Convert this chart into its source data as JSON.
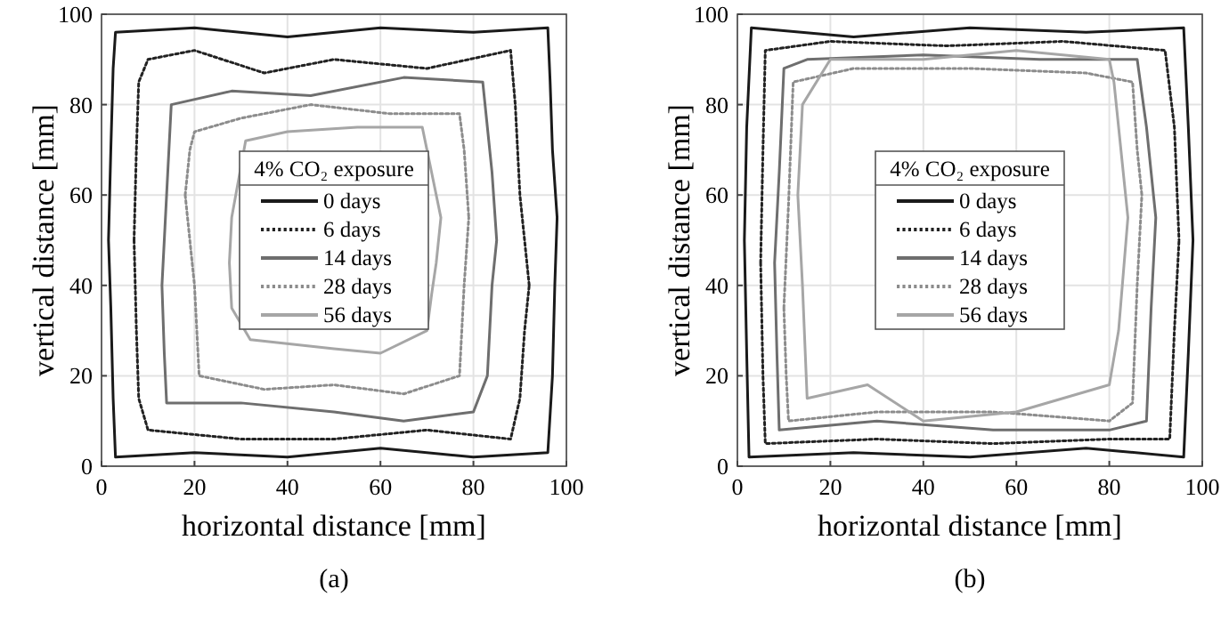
{
  "chart_data": [
    {
      "type": "line",
      "xlabel": "horizontal distance [mm]",
      "ylabel": "vertical distance [mm]",
      "legend_title": "4% CO₂ exposure",
      "legend": "center",
      "grid": true,
      "xlim": [
        0,
        100
      ],
      "ylim": [
        0,
        100
      ],
      "xticks": [
        0,
        20,
        40,
        60,
        80,
        100
      ],
      "yticks": [
        0,
        20,
        40,
        60,
        80,
        100
      ],
      "annotations": [
        "(a)"
      ],
      "series": [
        {
          "name": "0 days",
          "color": "#1a1a1a",
          "line_style": "solid",
          "x": [
            1.5,
            2,
            2.5,
            3,
            20,
            40,
            60,
            80,
            96,
            97,
            97.5,
            98,
            null,
            1.5,
            2,
            2.5,
            3,
            20,
            40,
            60,
            80,
            96,
            96.5,
            97,
            98
          ],
          "values": [
            50,
            35,
            15,
            2,
            3,
            2,
            4,
            2,
            3,
            20,
            40,
            55,
            null,
            50,
            70,
            88,
            96,
            97,
            95,
            97,
            96,
            97,
            85,
            70,
            55
          ]
        },
        {
          "name": "6 days",
          "color": "#222222",
          "line_style": "dotted",
          "x": [
            7,
            7.5,
            8,
            10,
            30,
            50,
            70,
            88,
            90,
            91,
            92,
            null,
            7,
            7.5,
            8,
            10,
            20,
            35,
            50,
            70,
            88,
            89,
            90,
            92
          ],
          "values": [
            50,
            30,
            15,
            8,
            6,
            6,
            8,
            6,
            15,
            30,
            40,
            null,
            50,
            70,
            85,
            90,
            92,
            87,
            90,
            88,
            92,
            80,
            60,
            40
          ]
        },
        {
          "name": "14 days",
          "color": "#6e6e6e",
          "line_style": "solid",
          "x": [
            13,
            13.5,
            14,
            30,
            50,
            65,
            80,
            83,
            84,
            85,
            null,
            13,
            14,
            15,
            28,
            45,
            65,
            82,
            83,
            84,
            85
          ],
          "values": [
            40,
            25,
            14,
            14,
            12,
            10,
            12,
            20,
            40,
            50,
            null,
            40,
            60,
            80,
            83,
            82,
            86,
            85,
            75,
            65,
            50
          ]
        },
        {
          "name": "28 days",
          "color": "#8c8c8c",
          "line_style": "dotted",
          "x": [
            18,
            20,
            21,
            35,
            50,
            65,
            77,
            78,
            79,
            null,
            18,
            19,
            20,
            30,
            45,
            62,
            77,
            78,
            79
          ],
          "values": [
            60,
            40,
            20,
            17,
            18,
            16,
            20,
            40,
            55,
            null,
            60,
            70,
            74,
            77,
            80,
            78,
            78,
            70,
            55
          ]
        },
        {
          "name": "56 days",
          "color": "#a6a6a6",
          "line_style": "solid",
          "x": [
            27.5,
            28,
            32,
            50,
            60,
            70,
            71,
            72,
            73,
            null,
            27.5,
            28,
            31,
            40,
            55,
            69,
            70,
            71,
            73
          ],
          "values": [
            45,
            35,
            28,
            26,
            25,
            30,
            38,
            45,
            55,
            null,
            45,
            55,
            72,
            74,
            75,
            75,
            70,
            65,
            55
          ]
        }
      ]
    },
    {
      "type": "line",
      "xlabel": "horizontal distance [mm]",
      "ylabel": "vertical distance [mm]",
      "legend_title": "4% CO₂ exposure",
      "legend": "center",
      "grid": true,
      "xlim": [
        0,
        100
      ],
      "ylim": [
        0,
        100
      ],
      "xticks": [
        0,
        20,
        40,
        60,
        80,
        100
      ],
      "yticks": [
        0,
        20,
        40,
        60,
        80,
        100
      ],
      "annotations": [
        "(b)"
      ],
      "series": [
        {
          "name": "0 days",
          "color": "#1a1a1a",
          "line_style": "solid",
          "x": [
            1.5,
            2,
            2.5,
            25,
            50,
            75,
            96,
            97,
            98,
            null,
            1.5,
            2,
            3,
            25,
            50,
            75,
            96,
            97,
            98
          ],
          "values": [
            50,
            25,
            2,
            3,
            2,
            4,
            2,
            25,
            50,
            null,
            50,
            75,
            97,
            95,
            97,
            96,
            97,
            75,
            50
          ]
        },
        {
          "name": "6 days",
          "color": "#222222",
          "line_style": "dotted",
          "x": [
            5,
            5.5,
            6,
            30,
            55,
            80,
            93,
            94,
            95,
            null,
            5,
            5.5,
            6,
            20,
            45,
            70,
            92,
            94,
            95
          ],
          "values": [
            45,
            20,
            5,
            6,
            5,
            6,
            6,
            30,
            50,
            null,
            45,
            70,
            92,
            94,
            93,
            94,
            92,
            75,
            50
          ]
        },
        {
          "name": "14 days",
          "color": "#6e6e6e",
          "line_style": "solid",
          "x": [
            8,
            8.5,
            9,
            30,
            55,
            80,
            88,
            89,
            90,
            null,
            8,
            9,
            10,
            15,
            40,
            65,
            86,
            88,
            90
          ],
          "values": [
            45,
            25,
            8,
            10,
            8,
            8,
            10,
            35,
            55,
            null,
            45,
            65,
            88,
            90,
            91,
            90,
            90,
            75,
            55
          ]
        },
        {
          "name": "28 days",
          "color": "#8c8c8c",
          "line_style": "dotted",
          "x": [
            10,
            10.5,
            11,
            30,
            55,
            80,
            85,
            86,
            87,
            null,
            10,
            11,
            12,
            25,
            50,
            75,
            85,
            86,
            87
          ],
          "values": [
            35,
            20,
            10,
            12,
            12,
            10,
            14,
            40,
            60,
            null,
            35,
            58,
            85,
            88,
            88,
            87,
            85,
            70,
            60
          ]
        },
        {
          "name": "56 days",
          "color": "#a6a6a6",
          "line_style": "solid",
          "x": [
            13,
            14,
            15,
            28,
            40,
            60,
            80,
            82,
            84,
            null,
            13,
            14,
            20,
            40,
            60,
            80,
            81,
            82,
            84
          ],
          "values": [
            60,
            40,
            15,
            18,
            10,
            12,
            18,
            30,
            55,
            null,
            60,
            80,
            90,
            90,
            92,
            90,
            85,
            75,
            55
          ]
        }
      ]
    }
  ]
}
